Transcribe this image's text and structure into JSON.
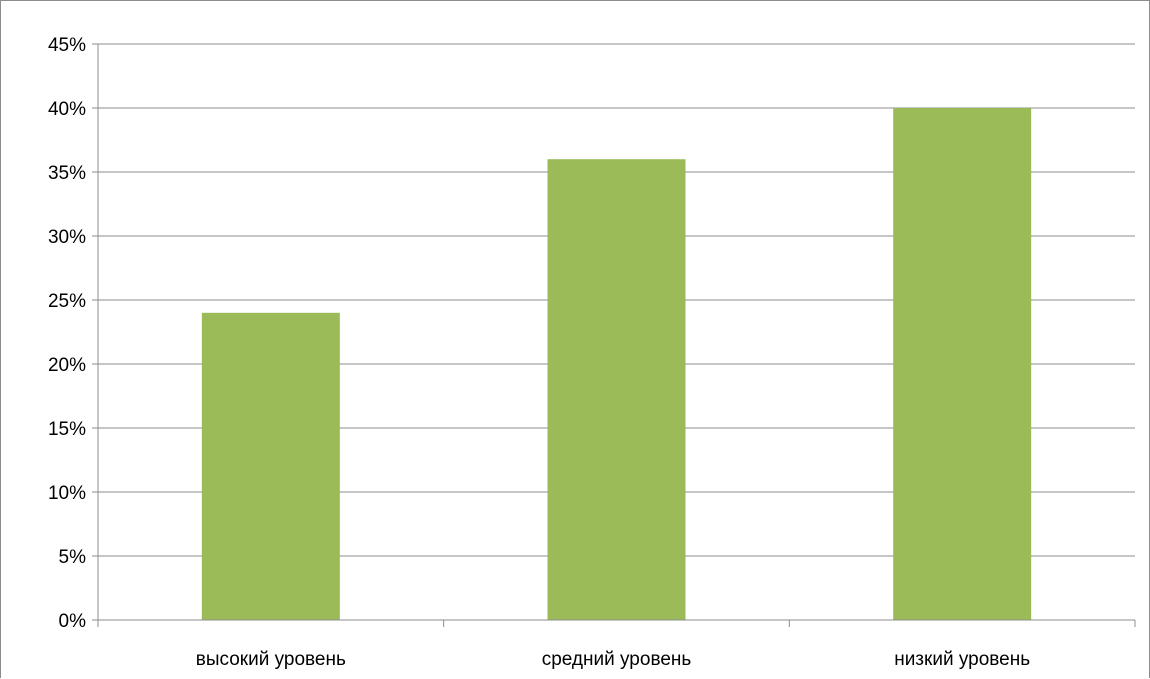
{
  "chart_data": {
    "type": "bar",
    "categories": [
      "высокий уровень",
      "средний уровень",
      "низкий уровень"
    ],
    "values": [
      24,
      36,
      40
    ],
    "ylim": [
      0,
      45
    ],
    "y_ticks": [
      0,
      5,
      10,
      15,
      20,
      25,
      30,
      35,
      40,
      45
    ],
    "y_tick_labels": [
      "0%",
      "5%",
      "10%",
      "15%",
      "20%",
      "25%",
      "30%",
      "35%",
      "40%",
      "45%"
    ],
    "title": "",
    "xlabel": "",
    "ylabel": "",
    "grid": true,
    "legend": "none",
    "bar_color": "#9BBB59",
    "grid_color": "#8c8c8c"
  }
}
